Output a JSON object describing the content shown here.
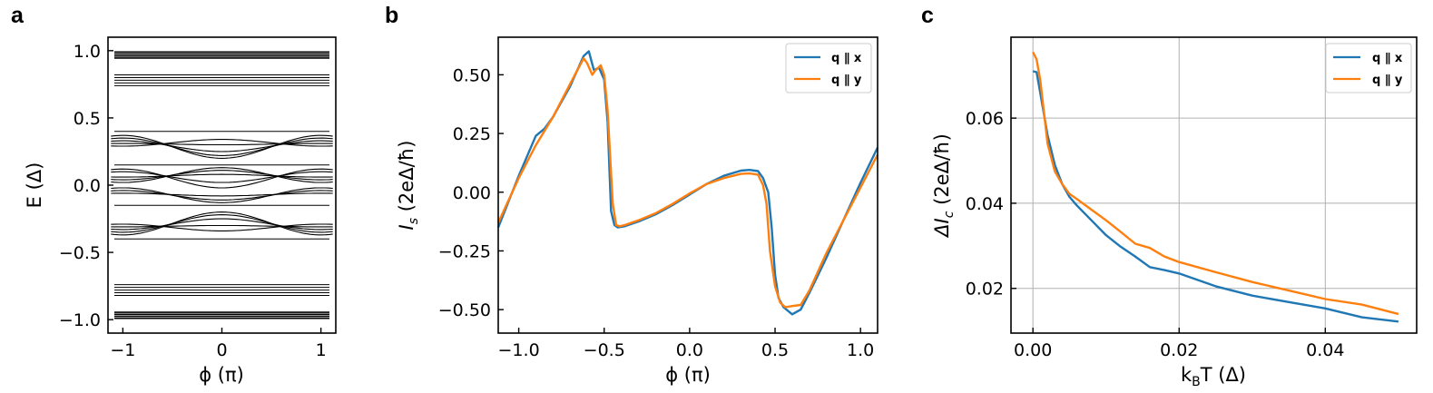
{
  "panels": {
    "a": "a",
    "b": "b",
    "c": "c"
  },
  "colors": {
    "blue": "#1f77b4",
    "orange": "#ff7f0e",
    "black": "#000000",
    "grid": "#b0b0b0"
  },
  "chart_data": [
    {
      "id": "a",
      "type": "line",
      "xlabel": "ϕ (π)",
      "ylabel": "E (Δ)",
      "xlim": [
        -1.15,
        1.15
      ],
      "ylim": [
        -1.1,
        1.1
      ],
      "xticks": [
        -1,
        0,
        1
      ],
      "xtick_labels": [
        "−1",
        "0",
        "1"
      ],
      "yticks": [
        -1.0,
        -0.5,
        0.0,
        0.5,
        1.0
      ],
      "ytick_labels": [
        "−1.0",
        "−0.5",
        "0.0",
        "0.5",
        "1.0"
      ],
      "grid": false,
      "band_levels": {
        "flat": [
          0.99,
          0.975,
          0.96,
          0.945,
          0.82,
          0.8,
          0.78,
          0.76,
          0.74,
          0.4,
          0.15,
          -0.15,
          -0.4,
          -0.74,
          -0.76,
          -0.78,
          -0.8,
          -0.82,
          -0.945,
          -0.96,
          -0.975,
          -0.99
        ],
        "dispersive": [
          {
            "at_zero": 0.2,
            "at_edge": 0.37
          },
          {
            "at_zero": 0.22,
            "at_edge": 0.35
          },
          {
            "at_zero": 0.25,
            "at_edge": 0.33
          },
          {
            "at_zero": 0.3,
            "at_edge": 0.31
          },
          {
            "at_zero": 0.34,
            "at_edge": 0.29
          },
          {
            "at_zero": 0.13,
            "at_edge": 0.02
          },
          {
            "at_zero": 0.11,
            "at_edge": 0.04
          },
          {
            "at_zero": 0.08,
            "at_edge": 0.06
          },
          {
            "at_zero": 0.02,
            "at_edge": 0.1
          },
          {
            "at_zero": -0.02,
            "at_edge": 0.12
          },
          {
            "at_zero": -0.08,
            "at_edge": -0.06
          },
          {
            "at_zero": -0.11,
            "at_edge": -0.04
          },
          {
            "at_zero": -0.13,
            "at_edge": -0.02
          },
          {
            "at_zero": -0.2,
            "at_edge": -0.37
          },
          {
            "at_zero": -0.22,
            "at_edge": -0.35
          },
          {
            "at_zero": -0.25,
            "at_edge": -0.33
          },
          {
            "at_zero": -0.3,
            "at_edge": -0.31
          },
          {
            "at_zero": -0.34,
            "at_edge": -0.29
          }
        ]
      }
    },
    {
      "id": "b",
      "type": "line",
      "xlabel": "ϕ (π)",
      "ylabel_main": "I",
      "ylabel_sub": "s",
      "ylabel_rest": " (2eΔ/ħ)",
      "xlim": [
        -1.12,
        1.1
      ],
      "ylim": [
        -0.6,
        0.66
      ],
      "xticks": [
        -1.0,
        -0.5,
        0.0,
        0.5,
        1.0
      ],
      "xtick_labels": [
        "−1.0",
        "−0.5",
        "0.0",
        "0.5",
        "1.0"
      ],
      "yticks": [
        -0.5,
        -0.25,
        0.0,
        0.25,
        0.5
      ],
      "ytick_labels": [
        "−0.50",
        "−0.25",
        "0.00",
        "0.25",
        "0.50"
      ],
      "grid": false,
      "legend_placement": "top-right",
      "series": [
        {
          "name": "q ∥ x",
          "color": "#1f77b4",
          "x": [
            -1.12,
            -1.0,
            -0.9,
            -0.85,
            -0.8,
            -0.7,
            -0.62,
            -0.59,
            -0.56,
            -0.53,
            -0.5,
            -0.48,
            -0.46,
            -0.44,
            -0.42,
            -0.38,
            -0.3,
            -0.2,
            -0.1,
            0.0,
            0.1,
            0.2,
            0.3,
            0.35,
            0.4,
            0.43,
            0.46,
            0.48,
            0.5,
            0.52,
            0.55,
            0.6,
            0.65,
            0.7,
            0.8,
            0.9,
            1.0,
            1.1
          ],
          "y": [
            -0.15,
            0.07,
            0.24,
            0.27,
            0.32,
            0.45,
            0.58,
            0.6,
            0.52,
            0.53,
            0.48,
            0.3,
            -0.08,
            -0.14,
            -0.15,
            -0.145,
            -0.125,
            -0.095,
            -0.055,
            -0.01,
            0.035,
            0.07,
            0.092,
            0.095,
            0.09,
            0.06,
            0.0,
            -0.15,
            -0.35,
            -0.45,
            -0.49,
            -0.52,
            -0.5,
            -0.43,
            -0.28,
            -0.12,
            0.04,
            0.19
          ]
        },
        {
          "name": "q ∥ y",
          "color": "#ff7f0e",
          "x": [
            -1.12,
            -1.0,
            -0.9,
            -0.8,
            -0.7,
            -0.62,
            -0.6,
            -0.57,
            -0.55,
            -0.52,
            -0.5,
            -0.48,
            -0.45,
            -0.43,
            -0.41,
            -0.38,
            -0.3,
            -0.2,
            -0.1,
            0.0,
            0.1,
            0.2,
            0.3,
            0.35,
            0.4,
            0.43,
            0.45,
            0.47,
            0.5,
            0.53,
            0.56,
            0.6,
            0.65,
            0.7,
            0.8,
            0.9,
            1.0,
            1.1
          ],
          "y": [
            -0.13,
            0.06,
            0.2,
            0.32,
            0.46,
            0.57,
            0.55,
            0.5,
            0.52,
            0.54,
            0.5,
            0.35,
            -0.05,
            -0.14,
            -0.145,
            -0.14,
            -0.12,
            -0.09,
            -0.05,
            -0.005,
            0.035,
            0.06,
            0.078,
            0.08,
            0.075,
            0.03,
            -0.05,
            -0.25,
            -0.4,
            -0.47,
            -0.49,
            -0.485,
            -0.48,
            -0.42,
            -0.26,
            -0.12,
            0.02,
            0.16
          ]
        }
      ]
    },
    {
      "id": "c",
      "type": "line",
      "xlabel_main": "k",
      "xlabel_sub": "B",
      "xlabel_rest": "T (Δ)",
      "ylabel_main": "ΔI",
      "ylabel_sub": "c",
      "ylabel_rest": " (2eΔ/ħ)",
      "xlim": [
        -0.003,
        0.0525
      ],
      "ylim": [
        0.0095,
        0.079
      ],
      "xticks": [
        0.0,
        0.02,
        0.04
      ],
      "xtick_labels": [
        "0.00",
        "0.02",
        "0.04"
      ],
      "yticks": [
        0.02,
        0.04,
        0.06
      ],
      "ytick_labels": [
        "0.02",
        "0.04",
        "0.06"
      ],
      "grid": true,
      "legend_placement": "top-right",
      "series": [
        {
          "name": "q ∥ x",
          "color": "#1f77b4",
          "x": [
            0.0,
            0.0005,
            0.001,
            0.002,
            0.003,
            0.004,
            0.005,
            0.006,
            0.008,
            0.01,
            0.012,
            0.014,
            0.016,
            0.018,
            0.02,
            0.025,
            0.03,
            0.035,
            0.04,
            0.045,
            0.05
          ],
          "y": [
            0.071,
            0.0708,
            0.066,
            0.056,
            0.049,
            0.0445,
            0.0415,
            0.0395,
            0.036,
            0.0325,
            0.0298,
            0.0275,
            0.025,
            0.0243,
            0.0235,
            0.0205,
            0.0183,
            0.0168,
            0.0153,
            0.0132,
            0.0122
          ]
        },
        {
          "name": "q ∥ y",
          "color": "#ff7f0e",
          "x": [
            0.0,
            0.0005,
            0.001,
            0.002,
            0.003,
            0.004,
            0.005,
            0.006,
            0.008,
            0.01,
            0.012,
            0.014,
            0.016,
            0.018,
            0.02,
            0.025,
            0.03,
            0.035,
            0.04,
            0.045,
            0.05
          ],
          "y": [
            0.0755,
            0.0738,
            0.069,
            0.054,
            0.0475,
            0.0445,
            0.0422,
            0.041,
            0.0385,
            0.036,
            0.0333,
            0.0305,
            0.0295,
            0.0275,
            0.0262,
            0.0238,
            0.0215,
            0.0195,
            0.0175,
            0.0162,
            0.014
          ]
        }
      ]
    }
  ]
}
